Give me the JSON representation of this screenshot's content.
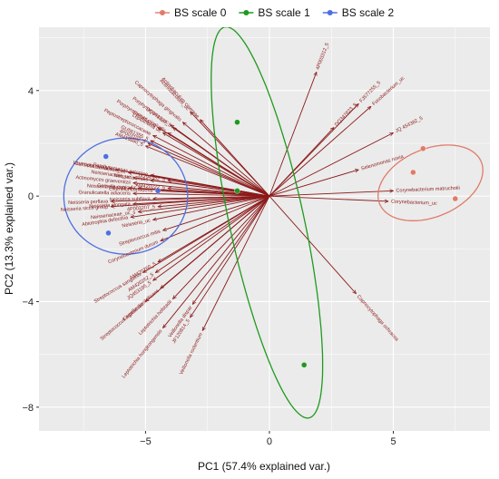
{
  "chart_data": {
    "type": "scatter",
    "xlabel": "PC1 (57.4% explained var.)",
    "ylabel": "PC2 (13.3% explained var.)",
    "xlim": [
      -9.3,
      8.9
    ],
    "ylim": [
      -8.9,
      6.4
    ],
    "x_ticks": [
      -5,
      0,
      5
    ],
    "y_ticks": [
      -8,
      -4,
      0,
      4
    ],
    "grid": true,
    "legend_position": "top",
    "series": [
      {
        "name": "BS scale 0",
        "color": "#e07b6a",
        "points": [
          [
            5.8,
            0.9
          ],
          [
            6.2,
            1.8
          ],
          [
            7.5,
            -0.1
          ]
        ],
        "ellipse": {
          "cx": 6.5,
          "cy": 0.5,
          "rx": 2.2,
          "ry": 1.3,
          "angle": 20
        }
      },
      {
        "name": "BS scale 1",
        "color": "#1e9a1e",
        "points": [
          [
            -1.3,
            2.8
          ],
          [
            -1.3,
            0.2
          ],
          [
            1.4,
            -6.4
          ]
        ],
        "ellipse": {
          "cx": -0.1,
          "cy": -1.0,
          "rx": 7.6,
          "ry": 1.5,
          "angle": -77
        }
      },
      {
        "name": "BS scale  2",
        "color": "#4f6fe0",
        "points": [
          [
            -6.6,
            1.5
          ],
          [
            -6.5,
            -1.4
          ],
          [
            -4.5,
            0.2
          ]
        ],
        "ellipse": {
          "cx": -5.8,
          "cy": 0.0,
          "rx": 2.5,
          "ry": 2.2,
          "angle": 0
        }
      }
    ],
    "loadings_color": "#8b1a1a",
    "loadings": [
      {
        "label": "4P003312_5",
        "x": 1.9,
        "y": 4.7
      },
      {
        "label": "FJ577255_5",
        "x": 3.6,
        "y": 3.5
      },
      {
        "label": "Fusobacterium_uc",
        "x": 4.1,
        "y": 3.4
      },
      {
        "label": "DQ347823_5",
        "x": 2.6,
        "y": 2.6
      },
      {
        "label": "JQ 454382_5",
        "x": 5.0,
        "y": 2.4
      },
      {
        "label": "Selenomonas noxia",
        "x": 3.6,
        "y": 1.0
      },
      {
        "label": "Corynebacterium matruchotii",
        "x": 5.0,
        "y": 0.2
      },
      {
        "label": "Corynebacterium_uc",
        "x": 4.8,
        "y": -0.2
      },
      {
        "label": "Capnocytophaga ochracea",
        "x": 3.5,
        "y": -3.7
      },
      {
        "label": "Actinobaculum_uc",
        "x": -3.2,
        "y": 3.2
      },
      {
        "label": "Actinobaculum cinereae",
        "x": -2.8,
        "y": 2.9
      },
      {
        "label": "Capnocytophaga gingivalis",
        "x": -3.5,
        "y": 2.8
      },
      {
        "label": "Porphyromonas_uc",
        "x": -4.0,
        "y": 2.7
      },
      {
        "label": "DQ341383_5",
        "x": -3.9,
        "y": 2.6
      },
      {
        "label": "Porphyromonas gingivalis",
        "x": -4.1,
        "y": 2.4
      },
      {
        "label": "Gemella_uc",
        "x": -4.5,
        "y": 2.6
      },
      {
        "label": "Leptotrichia uc",
        "x": -4.3,
        "y": 2.4
      },
      {
        "label": "Peptostreptococcaceae",
        "x": -4.7,
        "y": 2.3
      },
      {
        "label": "GU561355_5",
        "x": -4.8,
        "y": 2.1
      },
      {
        "label": "4P003102_5",
        "x": -4.9,
        "y": 2.0
      },
      {
        "label": "AM419880_5",
        "x": -5.0,
        "y": 1.9
      },
      {
        "label": "Lautropia mirabilis",
        "x": -6.2,
        "y": 1.0
      },
      {
        "label": "Cardiobacteriaceae_uc",
        "x": -5.7,
        "y": 0.9
      },
      {
        "label": "Neisseriaceae_uc",
        "x": -5.5,
        "y": 0.7
      },
      {
        "label": "Porphyromonas catoniae",
        "x": -4.8,
        "y": 0.8
      },
      {
        "label": "Neisseria oralis",
        "x": -4.8,
        "y": 0.6
      },
      {
        "label": "Actinomyces graevenitzii",
        "x": -5.5,
        "y": 0.5
      },
      {
        "label": "JX294352_5",
        "x": -4.1,
        "y": 0.6
      },
      {
        "label": "Neisseria cinerea",
        "x": -5.7,
        "y": 0.3
      },
      {
        "label": "Gemella cunicula",
        "x": -5.3,
        "y": 0.3
      },
      {
        "label": "Eikenella corrodens",
        "x": -4.6,
        "y": 0.2
      },
      {
        "label": "AM420222_5",
        "x": -4.1,
        "y": 0.3
      },
      {
        "label": "Granulicatella adiacens",
        "x": -5.5,
        "y": 0.1
      },
      {
        "label": "Neisseria subflava",
        "x": -4.7,
        "y": -0.1
      },
      {
        "label": "Neisseria perflava",
        "x": -6.4,
        "y": -0.2
      },
      {
        "label": "Neisseria sicca group",
        "x": -6.4,
        "y": -0.4
      },
      {
        "label": "Neisseria elongata",
        "x": -5.5,
        "y": -0.3
      },
      {
        "label": "4P003207_5",
        "x": -4.5,
        "y": -0.4
      },
      {
        "label": "Neisseriaceae_uc_s",
        "x": -5.3,
        "y": -0.6
      },
      {
        "label": "Abiotrophia defectiva",
        "x": -5.6,
        "y": -0.8
      },
      {
        "label": "Neisseria_uc",
        "x": -4.7,
        "y": -0.9
      },
      {
        "label": "Streptococcus mitis",
        "x": -4.3,
        "y": -1.3
      },
      {
        "label": "Corynebacterium durum",
        "x": -4.4,
        "y": -1.7
      },
      {
        "label": "Streptococcus sanguinis",
        "x": -5.1,
        "y": -2.9
      },
      {
        "label": "AM420260_5",
        "x": -4.5,
        "y": -2.5
      },
      {
        "label": "AM420262_5",
        "x": -4.6,
        "y": -2.9
      },
      {
        "label": "JQ453185_5",
        "x": -4.7,
        "y": -3.2
      },
      {
        "label": "Kingella denitrificans",
        "x": -4.4,
        "y": -3.5
      },
      {
        "label": "Streptococcus agalactiae",
        "x": -5.0,
        "y": -4.0
      },
      {
        "label": "Leptotrichia hofstadii",
        "x": -3.9,
        "y": -3.9
      },
      {
        "label": "Leptotrichia hongkongensis",
        "x": -4.3,
        "y": -5.0
      },
      {
        "label": "Veillonella dispar",
        "x": -3.1,
        "y": -4.1
      },
      {
        "label": "JF120814_5",
        "x": -3.2,
        "y": -4.6
      },
      {
        "label": "Veillonella rodentium",
        "x": -2.7,
        "y": -5.1
      }
    ]
  }
}
